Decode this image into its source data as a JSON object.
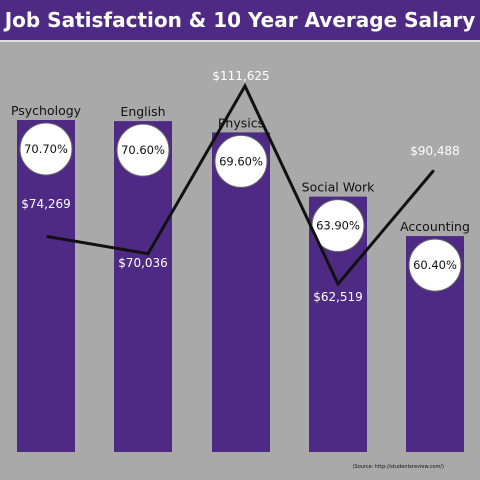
{
  "chart_data": {
    "type": "bar",
    "title": "Job Satisfaction & 10 Year Average Salary",
    "categories": [
      "Psychology",
      "English",
      "Physics",
      "Social Work",
      "Accounting"
    ],
    "series": [
      {
        "values": [
          70.7,
          70.6,
          69.6,
          63.9,
          60.4
        ],
        "labels": [
          "70.70%",
          "70.60%",
          "69.60%",
          "63.90%",
          "60.40%"
        ]
      },
      {
        "values": [
          74269,
          70036,
          111625,
          62519,
          90488
        ],
        "labels": [
          "$74,269",
          "$70,036",
          "$111,625",
          "$62,519",
          "$90,488"
        ]
      }
    ],
    "source": "(Source: http://studentsreview.com/)",
    "colors": {
      "bar": "#4e2a84",
      "background": "#a9a9a9",
      "line": "#111111",
      "circle": "#ffffff"
    }
  }
}
